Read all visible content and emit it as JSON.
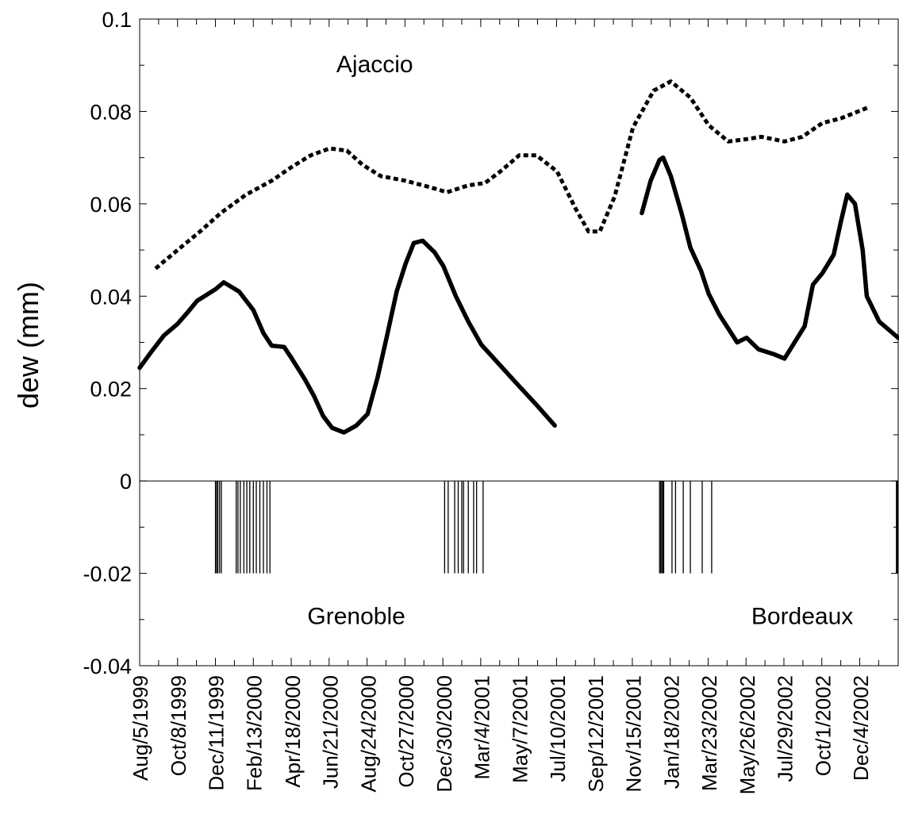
{
  "chart_data": {
    "type": "line",
    "title": "",
    "xlabel": "",
    "ylabel": "dew (mm)",
    "xlim": [
      "1999-08-05",
      "2003-02-06"
    ],
    "ylim": [
      -0.04,
      0.1
    ],
    "yticks": [
      -0.04,
      -0.02,
      0,
      0.02,
      0.04,
      0.06,
      0.08,
      0.1
    ],
    "ytick_labels": [
      "-0.04",
      "-0.02",
      "0",
      "0.02",
      "0.04",
      "0.06",
      "0.08",
      "0.1"
    ],
    "xticks": [
      {
        "date": "1999-08-05",
        "label": "Aug/5/1999"
      },
      {
        "date": "1999-10-08",
        "label": "Oct/8/1999"
      },
      {
        "date": "1999-12-11",
        "label": "Dec/11/1999"
      },
      {
        "date": "2000-02-13",
        "label": "Feb/13/2000"
      },
      {
        "date": "2000-04-18",
        "label": "Apr/18/2000"
      },
      {
        "date": "2000-06-21",
        "label": "Jun/21/2000"
      },
      {
        "date": "2000-08-24",
        "label": "Aug/24/2000"
      },
      {
        "date": "2000-10-27",
        "label": "Oct/27/2000"
      },
      {
        "date": "2000-12-30",
        "label": "Dec/30/2000"
      },
      {
        "date": "2001-03-04",
        "label": "Mar/4/2001"
      },
      {
        "date": "2001-05-07",
        "label": "May/7/2001"
      },
      {
        "date": "2001-07-10",
        "label": "Jul/10/2001"
      },
      {
        "date": "2001-09-12",
        "label": "Sep/12/2001"
      },
      {
        "date": "2001-11-15",
        "label": "Nov/15/2001"
      },
      {
        "date": "2002-01-18",
        "label": "Jan/18/2002"
      },
      {
        "date": "2002-03-23",
        "label": "Mar/23/2002"
      },
      {
        "date": "2002-05-26",
        "label": "May/26/2002"
      },
      {
        "date": "2002-07-29",
        "label": "Jul/29/2002"
      },
      {
        "date": "2002-10-01",
        "label": "Oct/1/2002"
      },
      {
        "date": "2002-12-04",
        "label": "Dec/4/2002"
      }
    ],
    "grid": false,
    "legend": "none",
    "annotations": [
      {
        "text": "Ajaccio",
        "x": "2000-09-05",
        "y": 0.0885
      },
      {
        "text": "Grenoble",
        "x": "2000-08-05",
        "y": -0.031
      },
      {
        "text": "Bordeaux",
        "x": "2002-08-28",
        "y": -0.031
      }
    ],
    "series": [
      {
        "style": "dotted",
        "color": "#000000",
        "points": [
          [
            "1999-09-01",
            0.046
          ],
          [
            "1999-10-08",
            0.05
          ],
          [
            "1999-11-15",
            0.054
          ],
          [
            "1999-12-20",
            0.058
          ],
          [
            "2000-02-01",
            0.062
          ],
          [
            "2000-03-15",
            0.065
          ],
          [
            "2000-04-18",
            0.068
          ],
          [
            "2000-05-20",
            0.0705
          ],
          [
            "2000-06-21",
            0.072
          ],
          [
            "2000-07-20",
            0.0715
          ],
          [
            "2000-08-15",
            0.0685
          ],
          [
            "2000-09-15",
            0.066
          ],
          [
            "2000-10-27",
            0.065
          ],
          [
            "2000-12-10",
            0.0635
          ],
          [
            "2001-01-05",
            0.0625
          ],
          [
            "2001-02-10",
            0.064
          ],
          [
            "2001-03-10",
            0.0645
          ],
          [
            "2001-04-05",
            0.067
          ],
          [
            "2001-05-07",
            0.0705
          ],
          [
            "2001-06-05",
            0.0705
          ],
          [
            "2001-07-10",
            0.067
          ],
          [
            "2001-08-10",
            0.059
          ],
          [
            "2001-09-01",
            0.054
          ],
          [
            "2001-09-20",
            0.054
          ],
          [
            "2001-10-15",
            0.0615
          ],
          [
            "2001-11-15",
            0.0765
          ],
          [
            "2001-12-20",
            0.0845
          ],
          [
            "2002-01-18",
            0.0865
          ],
          [
            "2002-02-20",
            0.083
          ],
          [
            "2002-03-23",
            0.077
          ],
          [
            "2002-04-25",
            0.0735
          ],
          [
            "2002-05-26",
            0.074
          ],
          [
            "2002-06-20",
            0.0745
          ],
          [
            "2002-07-29",
            0.0735
          ],
          [
            "2002-08-28",
            0.0745
          ],
          [
            "2002-10-01",
            0.0775
          ],
          [
            "2002-11-01",
            0.0785
          ],
          [
            "2002-12-20",
            0.081
          ]
        ]
      },
      {
        "style": "solid",
        "color": "#000000",
        "points": [
          [
            "1999-08-05",
            0.0245
          ],
          [
            "1999-08-25",
            0.028
          ],
          [
            "1999-09-15",
            0.0315
          ],
          [
            "1999-10-08",
            0.034
          ],
          [
            "1999-10-25",
            0.0365
          ],
          [
            "1999-11-10",
            0.039
          ],
          [
            "1999-12-11",
            0.0415
          ],
          [
            "1999-12-25",
            0.043
          ],
          [
            "2000-01-20",
            0.041
          ],
          [
            "2000-02-13",
            0.037
          ],
          [
            "2000-03-01",
            0.032
          ],
          [
            "2000-03-15",
            0.0293
          ],
          [
            "2000-04-05",
            0.029
          ],
          [
            "2000-04-18",
            0.0265
          ],
          [
            "2000-05-10",
            0.022
          ],
          [
            "2000-05-25",
            0.0185
          ],
          [
            "2000-06-10",
            0.014
          ],
          [
            "2000-06-25",
            0.0115
          ],
          [
            "2000-07-15",
            0.0105
          ],
          [
            "2000-08-05",
            0.012
          ],
          [
            "2000-08-24",
            0.0145
          ],
          [
            "2000-09-10",
            0.0225
          ],
          [
            "2000-09-25",
            0.031
          ],
          [
            "2000-10-12",
            0.041
          ],
          [
            "2000-10-27",
            0.047
          ],
          [
            "2000-11-10",
            0.0515
          ],
          [
            "2000-11-25",
            0.052
          ],
          [
            "2000-12-15",
            0.0495
          ],
          [
            "2000-12-30",
            0.0465
          ],
          [
            "2001-01-20",
            0.04
          ],
          [
            "2001-02-10",
            0.0345
          ],
          [
            "2001-03-04",
            0.0295
          ],
          [
            "2001-04-05",
            0.025
          ],
          [
            "2001-05-07",
            0.0205
          ],
          [
            "2001-06-05",
            0.0165
          ],
          [
            "2001-07-06",
            0.012
          ]
        ]
      },
      {
        "style": "solid",
        "color": "#000000",
        "points": [
          [
            "2001-11-30",
            0.058
          ],
          [
            "2001-12-15",
            0.065
          ],
          [
            "2001-12-30",
            0.0695
          ],
          [
            "2002-01-05",
            0.07
          ],
          [
            "2002-01-18",
            0.066
          ],
          [
            "2002-02-05",
            0.058
          ],
          [
            "2002-02-20",
            0.0505
          ],
          [
            "2002-03-10",
            0.0455
          ],
          [
            "2002-03-23",
            0.0405
          ],
          [
            "2002-04-10",
            0.036
          ],
          [
            "2002-04-25",
            0.033
          ],
          [
            "2002-05-10",
            0.03
          ],
          [
            "2002-05-26",
            0.031
          ],
          [
            "2002-06-15",
            0.0285
          ],
          [
            "2002-07-10",
            0.0275
          ],
          [
            "2002-07-29",
            0.0265
          ],
          [
            "2002-08-15",
            0.03
          ],
          [
            "2002-09-01",
            0.0335
          ],
          [
            "2002-09-15",
            0.0425
          ],
          [
            "2002-10-01",
            0.045
          ],
          [
            "2002-10-20",
            0.049
          ],
          [
            "2002-11-01",
            0.056
          ],
          [
            "2002-11-12",
            0.062
          ],
          [
            "2002-11-25",
            0.06
          ],
          [
            "2002-12-08",
            0.05
          ],
          [
            "2002-12-15",
            0.04
          ],
          [
            "2003-01-05",
            0.0345
          ],
          [
            "2003-02-06",
            0.031
          ]
        ]
      }
    ],
    "event_markers": {
      "y_from": -0.02,
      "y_to": 0,
      "dates": [
        "1999-12-11",
        "1999-12-13",
        "1999-12-15",
        "1999-12-18",
        "1999-12-21",
        "2000-01-15",
        "2000-01-18",
        "2000-01-22",
        "2000-01-28",
        "2000-02-02",
        "2000-02-07",
        "2000-02-13",
        "2000-02-18",
        "2000-02-24",
        "2000-03-01",
        "2000-03-07",
        "2000-03-12",
        "2001-01-01",
        "2001-01-07",
        "2001-01-18",
        "2001-01-24",
        "2001-01-30",
        "2001-02-02",
        "2001-02-10",
        "2001-02-19",
        "2001-02-24",
        "2001-03-07",
        "2001-12-30",
        "2002-01-01",
        "2002-01-03",
        "2002-01-05",
        "2002-01-06",
        "2002-01-20",
        "2002-01-26",
        "2002-02-08",
        "2002-02-20",
        "2002-03-12",
        "2002-03-28",
        "2003-02-03",
        "2003-02-04",
        "2003-02-05"
      ]
    }
  }
}
